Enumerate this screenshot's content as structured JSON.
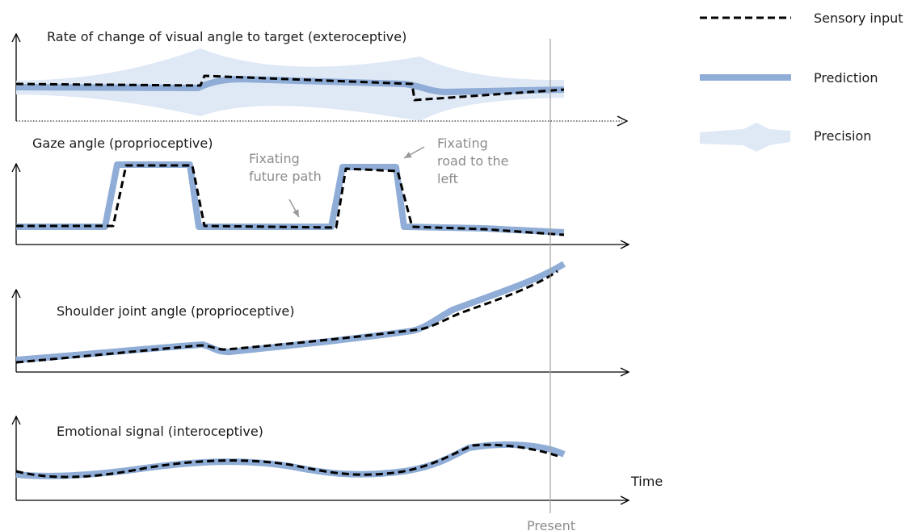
{
  "legend": {
    "sensory_input": "Sensory input",
    "prediction": "Prediction",
    "precision": "Precision"
  },
  "panels": [
    {
      "title": "Rate of change of visual angle to target (exteroceptive)"
    },
    {
      "title": "Gaze angle (proprioceptive)"
    },
    {
      "title": "Shoulder  joint angle (proprioceptive)"
    },
    {
      "title": "Emotional  signal (interoceptive)"
    }
  ],
  "annotations": {
    "fixating_future_path": [
      "Fixating",
      "future path"
    ],
    "fixating_road_left": [
      "Fixating",
      "road to the",
      "left"
    ]
  },
  "x_axis_label": "Time",
  "present_label": "Present",
  "colors": {
    "prediction": "#8fadd6",
    "precision": "#dfe8f5",
    "sensory": "#000000",
    "present_line": "#a8a8a8",
    "annotation_text": "#8c8c8c"
  }
}
